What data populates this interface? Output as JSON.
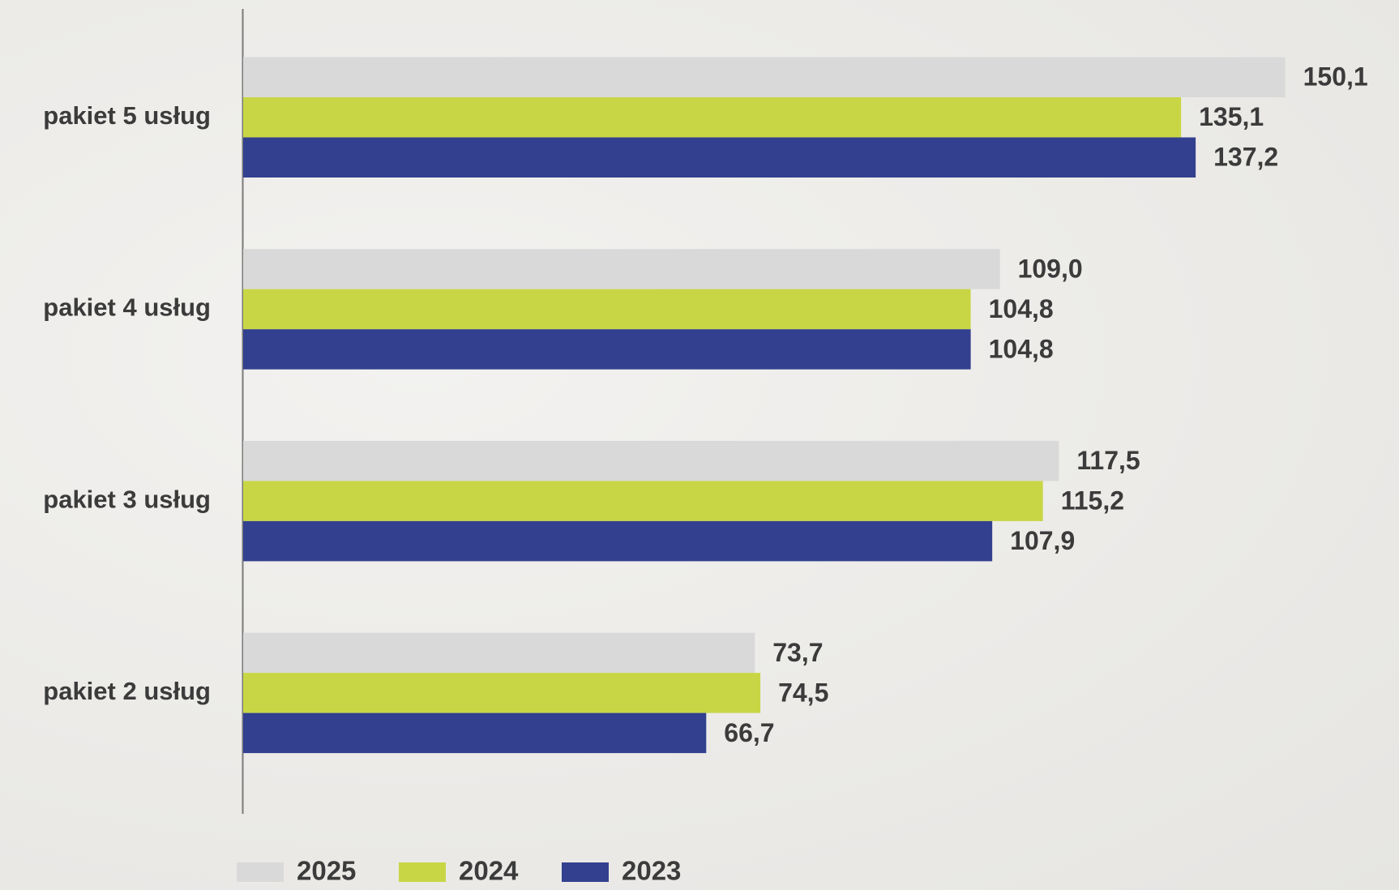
{
  "chart_data": {
    "type": "bar",
    "orientation": "horizontal",
    "categories": [
      "pakiet 5 usług",
      "pakiet 4 usług",
      "pakiet 3 usług",
      "pakiet 2 usług"
    ],
    "series": [
      {
        "name": "2025",
        "color": "#d9d9d9",
        "values": [
          150.1,
          109.0,
          117.5,
          73.7
        ],
        "value_labels": [
          "150,1",
          "109,0",
          "117,5",
          "73,7"
        ]
      },
      {
        "name": "2024",
        "color": "#c8d645",
        "values": [
          135.1,
          104.8,
          115.2,
          74.5
        ],
        "value_labels": [
          "135,1",
          "104,8",
          "115,2",
          "74,5"
        ]
      },
      {
        "name": "2023",
        "color": "#32408f",
        "values": [
          137.2,
          104.8,
          107.9,
          66.7
        ],
        "value_labels": [
          "137,2",
          "104,8",
          "107,9",
          "66,7"
        ]
      }
    ],
    "legend": "bottom"
  }
}
